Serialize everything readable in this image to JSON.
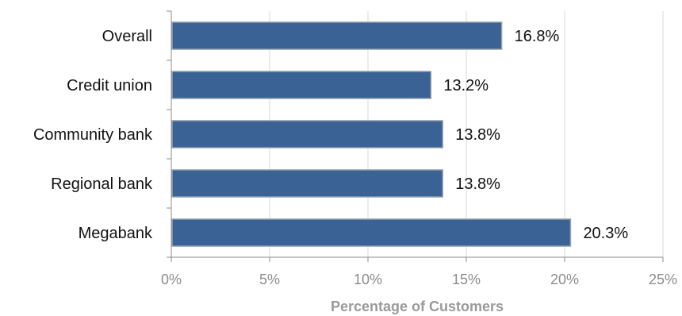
{
  "chart_data": {
    "type": "bar",
    "orientation": "horizontal",
    "categories": [
      "Overall",
      "Credit union",
      "Community bank",
      "Regional bank",
      "Megabank"
    ],
    "values": [
      16.8,
      13.2,
      13.8,
      13.8,
      20.3
    ],
    "value_labels": [
      "16.8%",
      "13.2%",
      "13.8%",
      "13.8%",
      "20.3%"
    ],
    "xlabel": "Percentage of Customers",
    "ylabel": "",
    "xlim": [
      0,
      25
    ],
    "x_ticks": [
      0,
      5,
      10,
      15,
      20,
      25
    ],
    "x_tick_labels": [
      "0%",
      "5%",
      "10%",
      "15%",
      "20%",
      "25%"
    ],
    "grid": true,
    "legend": "none",
    "bar_color": "#3A6295",
    "bar_edge_color": "#9aa3ad",
    "grid_color": "#d9d9d9",
    "axis_color": "#8c8c8c"
  }
}
